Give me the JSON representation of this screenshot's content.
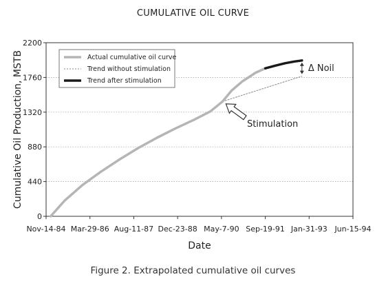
{
  "chart_data": {
    "type": "line",
    "title": "CUMULATIVE OIL CURVE",
    "xlabel": "Date",
    "ylabel": "Cumulative Oil Production, MSTB",
    "caption": "Figure 2. Extrapolated cumulative oil curves",
    "x_ticks": [
      "Nov-14-84",
      "Mar-29-86",
      "Aug-11-87",
      "Dec-23-88",
      "May-7-90",
      "Sep-19-91",
      "Jan-31-93",
      "Jun-15-94"
    ],
    "x_tick_dates": [
      "1984-11-14",
      "1986-03-29",
      "1987-08-11",
      "1988-12-23",
      "1990-05-07",
      "1991-09-19",
      "1993-01-31",
      "1994-06-15"
    ],
    "xlim": [
      "1984-11-14",
      "1994-06-15"
    ],
    "y_ticks": [
      0,
      440,
      880,
      1320,
      1760,
      2200
    ],
    "ylim": [
      0,
      2200
    ],
    "grid": "horizontal dotted",
    "legend_position": "top-left",
    "series": [
      {
        "name": "Actual cumulative oil curve",
        "style": "solid-light",
        "color": "#b5b5b5",
        "points": [
          [
            "1985-01-05",
            0
          ],
          [
            "1985-06-15",
            200
          ],
          [
            "1986-01-01",
            395
          ],
          [
            "1986-08-01",
            565
          ],
          [
            "1987-03-01",
            720
          ],
          [
            "1987-10-01",
            865
          ],
          [
            "1988-05-01",
            995
          ],
          [
            "1988-12-01",
            1115
          ],
          [
            "1989-07-01",
            1225
          ],
          [
            "1990-01-01",
            1330
          ],
          [
            "1990-05-20",
            1455
          ],
          [
            "1990-09-01",
            1595
          ],
          [
            "1991-01-01",
            1710
          ],
          [
            "1991-06-01",
            1820
          ],
          [
            "1991-09-19",
            1875
          ]
        ]
      },
      {
        "name": "Trend without stimulation",
        "style": "dotted",
        "color": "#888888",
        "points": [
          [
            "1990-05-20",
            1455
          ],
          [
            "1992-11-10",
            1775
          ]
        ]
      },
      {
        "name": "Trend after stimulation",
        "style": "solid-bold",
        "color": "#1a1a1a",
        "points": [
          [
            "1991-09-19",
            1875
          ],
          [
            "1992-01-15",
            1910
          ],
          [
            "1992-05-01",
            1940
          ],
          [
            "1992-08-15",
            1962
          ],
          [
            "1992-11-10",
            1975
          ]
        ]
      }
    ],
    "annotations": [
      {
        "text": "Stimulation",
        "target": [
          "1990-05-20",
          1455
        ]
      },
      {
        "text": "Δ Noil",
        "target": [
          "1992-11-10",
          1875
        ]
      }
    ]
  }
}
